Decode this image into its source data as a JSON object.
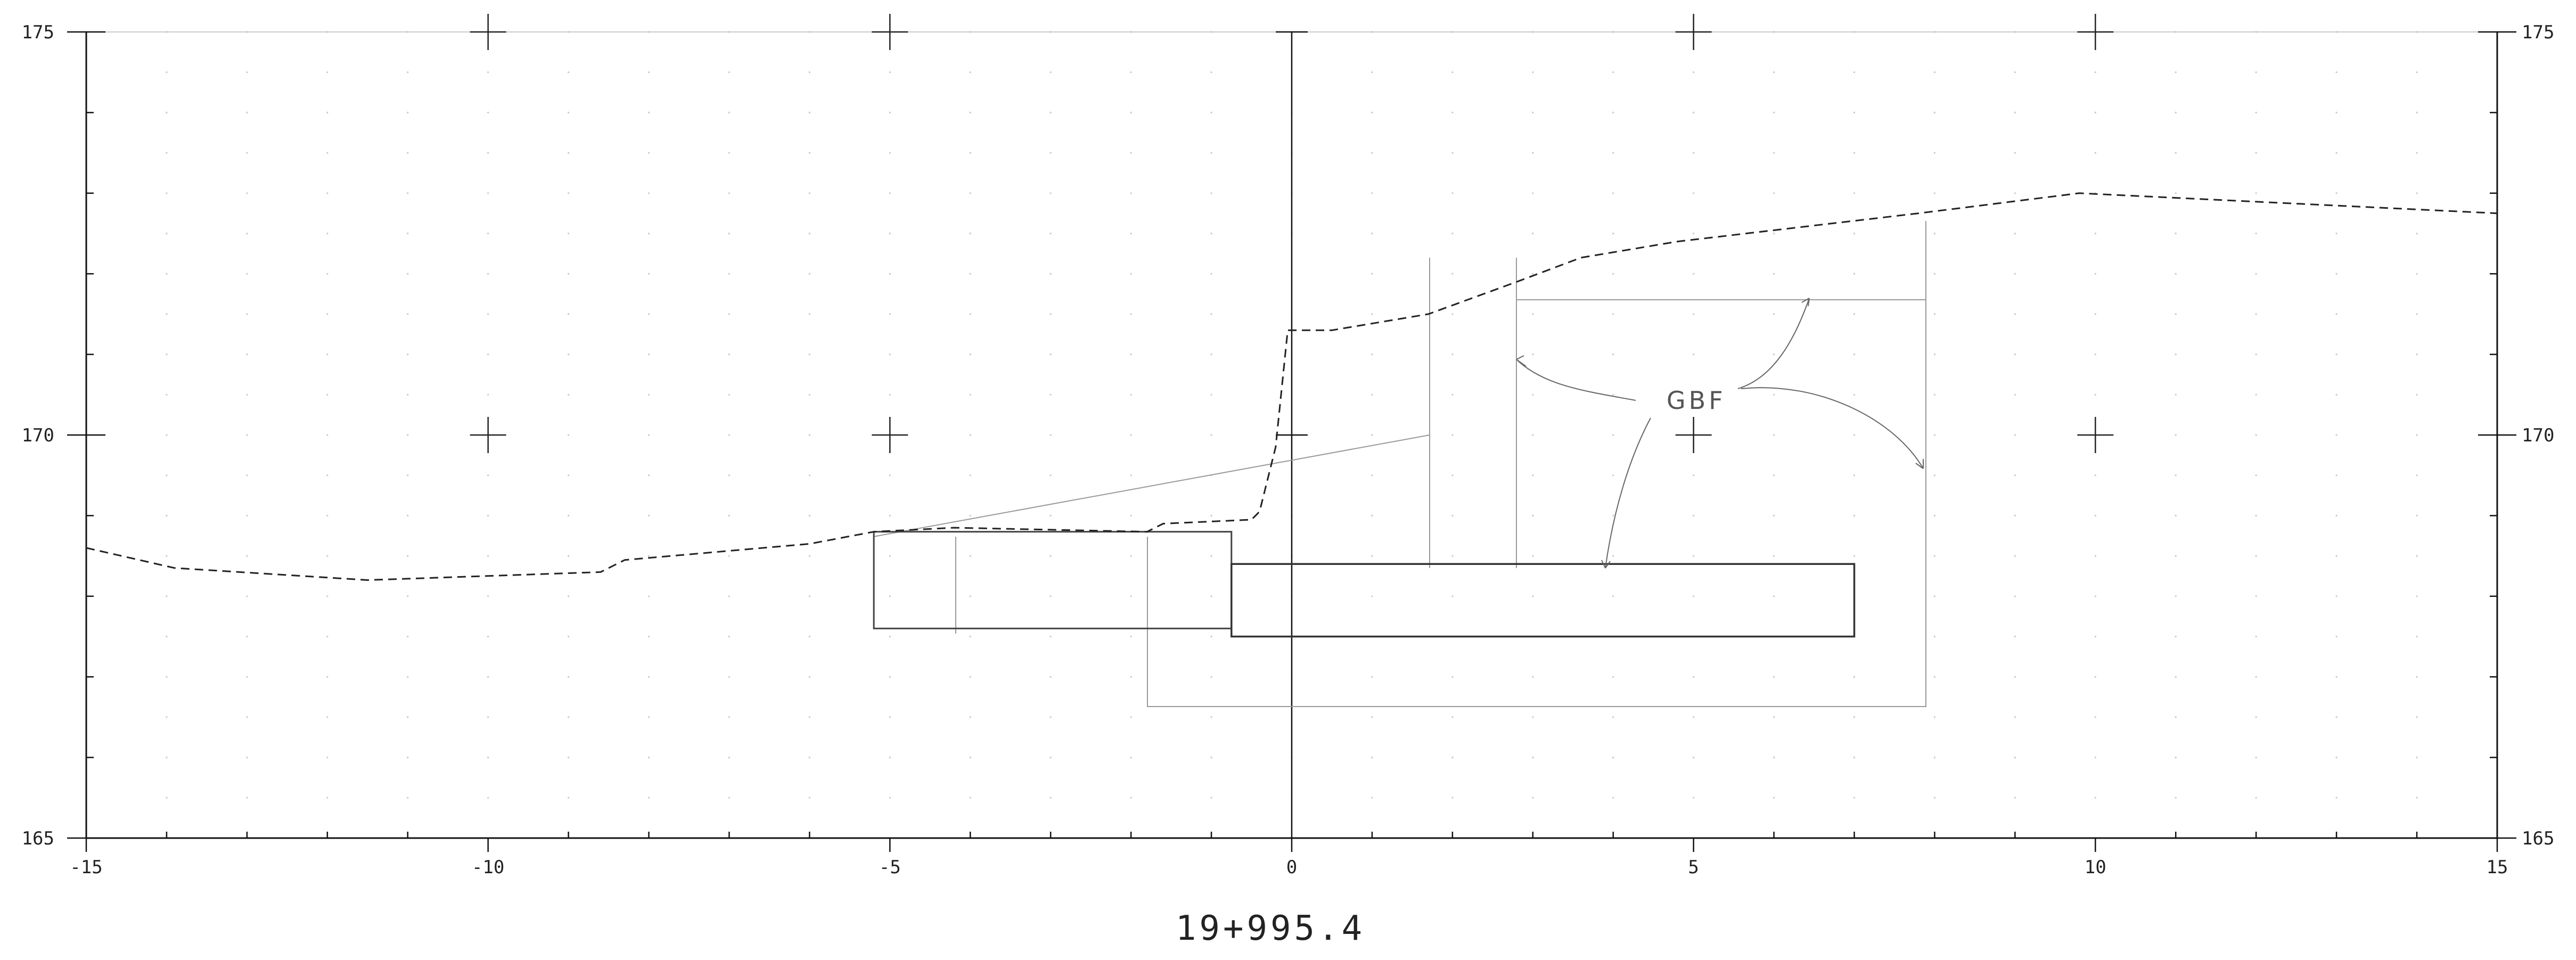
{
  "section": {
    "station": "19+995.4",
    "annotation": "GBF",
    "xlim": [
      -15,
      15
    ],
    "ylim": [
      165,
      175
    ],
    "x_ticks": [
      "-15",
      "-10",
      "-5",
      "0",
      "5",
      "10",
      "15"
    ],
    "y_ticks": [
      "165",
      "170",
      "175"
    ],
    "ground_profile": [
      [
        -15,
        168.6
      ],
      [
        -13.9,
        168.35
      ],
      [
        -11.5,
        168.2
      ],
      [
        -8.6,
        168.3
      ],
      [
        -8.3,
        168.45
      ],
      [
        -6,
        168.65
      ],
      [
        -5.2,
        168.8
      ],
      [
        -4.2,
        168.85
      ],
      [
        -1.8,
        168.8
      ],
      [
        -1.6,
        168.9
      ],
      [
        -0.5,
        168.95
      ],
      [
        -0.4,
        169.05
      ],
      [
        -0.2,
        169.85
      ],
      [
        -0.05,
        171.3
      ],
      [
        0.5,
        171.3
      ],
      [
        1.7,
        171.5
      ],
      [
        2.8,
        171.9
      ],
      [
        3.6,
        172.2
      ],
      [
        4.8,
        172.4
      ],
      [
        7.8,
        172.75
      ],
      [
        9.8,
        173.0
      ],
      [
        15,
        172.75
      ]
    ],
    "structure_wall": {
      "x_left": -0.75,
      "x_right": 7.0,
      "y_top": 168.4,
      "y_bottom": 167.5
    },
    "structure_block": {
      "x_left": -5.2,
      "x_right": -0.75,
      "y_top": 168.8,
      "y_bottom": 167.6
    }
  }
}
